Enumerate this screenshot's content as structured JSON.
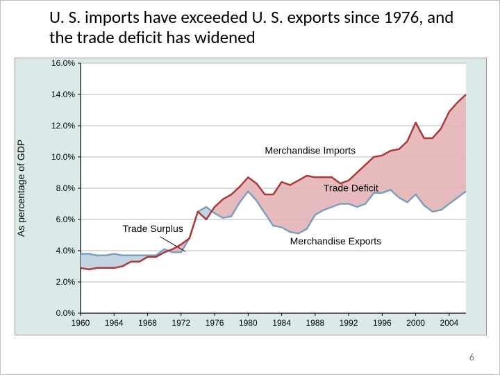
{
  "title": "U. S. imports have exceeded U. S. exports since 1976, and the trade deficit has widened",
  "page_number": "6",
  "chart": {
    "type": "area-between-lines",
    "y_label": "As percentage of GDP",
    "y_label_fontsize": 14,
    "x_ticks": [
      "1960",
      "1964",
      "1968",
      "1972",
      "1976",
      "1980",
      "1984",
      "1988",
      "1992",
      "1996",
      "2000",
      "2004"
    ],
    "y_ticks": [
      "0.0%",
      "2.0%",
      "4.0%",
      "6.0%",
      "8.0%",
      "10.0%",
      "12.0%",
      "14.0%",
      "16.0%"
    ],
    "xlim": [
      1960,
      2006
    ],
    "ylim": [
      0,
      16
    ],
    "axis_bg": "#dbe9e9",
    "plot_bg": "#ffffff",
    "grid_color": "#b7b7b7",
    "imports_line_color": "#a83a3a",
    "exports_line_color": "#7aa0bf",
    "imports_fill_color": "#e4b3b6",
    "exports_fill_color": "#bcd0e0",
    "line_width": 2.5,
    "tick_fontsize": 12,
    "label_fontsize": 14,
    "annotations": {
      "imports": "Merchandise Imports",
      "exports": "Merchandise Exports",
      "deficit": "Trade Deficit",
      "surplus": "Trade Surplus"
    },
    "years": [
      1960,
      1961,
      1962,
      1963,
      1964,
      1965,
      1966,
      1967,
      1968,
      1969,
      1970,
      1971,
      1972,
      1973,
      1974,
      1975,
      1976,
      1977,
      1978,
      1979,
      1980,
      1981,
      1982,
      1983,
      1984,
      1985,
      1986,
      1987,
      1988,
      1989,
      1990,
      1991,
      1992,
      1993,
      1994,
      1995,
      1996,
      1997,
      1998,
      1999,
      2000,
      2001,
      2002,
      2003,
      2004,
      2005,
      2006
    ],
    "imports": [
      2.9,
      2.8,
      2.9,
      2.9,
      2.9,
      3.0,
      3.3,
      3.3,
      3.6,
      3.6,
      3.9,
      4.1,
      4.4,
      4.8,
      6.5,
      6.0,
      6.8,
      7.3,
      7.6,
      8.1,
      8.7,
      8.3,
      7.6,
      7.6,
      8.4,
      8.2,
      8.5,
      8.8,
      8.7,
      8.7,
      8.7,
      8.3,
      8.5,
      9.0,
      9.5,
      10.0,
      10.1,
      10.4,
      10.5,
      11.0,
      12.2,
      11.2,
      11.2,
      11.8,
      12.9,
      13.5,
      14.0
    ],
    "exports": [
      3.8,
      3.8,
      3.7,
      3.7,
      3.8,
      3.7,
      3.7,
      3.7,
      3.7,
      3.7,
      4.1,
      3.9,
      3.9,
      4.8,
      6.5,
      6.8,
      6.4,
      6.1,
      6.2,
      7.1,
      7.8,
      7.2,
      6.4,
      5.6,
      5.5,
      5.2,
      5.1,
      5.4,
      6.3,
      6.6,
      6.8,
      7.0,
      7.0,
      6.8,
      7.0,
      7.7,
      7.7,
      7.9,
      7.4,
      7.1,
      7.6,
      6.9,
      6.5,
      6.6,
      7.0,
      7.4,
      7.8
    ]
  }
}
